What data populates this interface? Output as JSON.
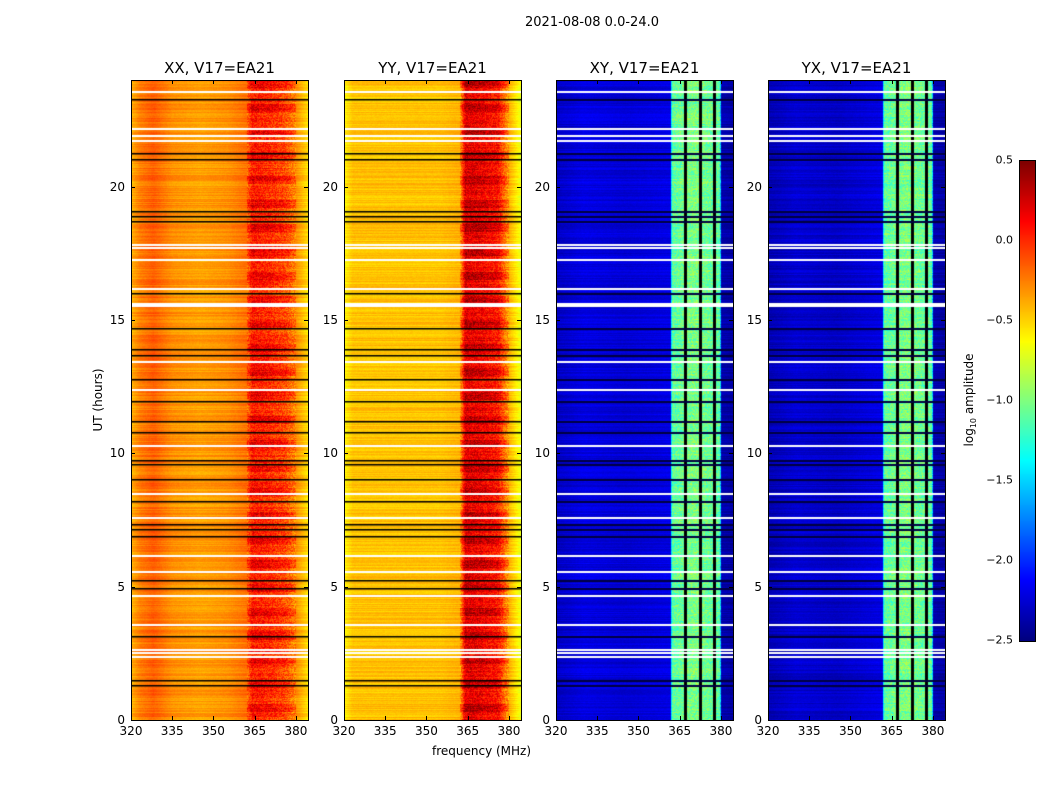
{
  "suptitle": "2021-08-08 0.0-24.0",
  "chart_data": {
    "type": "heatmap",
    "title": "2021-08-08 0.0-24.0",
    "xlabel": "frequency (MHz)",
    "ylabel": "UT (hours)",
    "xlim": [
      320,
      384.4
    ],
    "ylim": [
      0,
      24
    ],
    "xticks": [
      320,
      335,
      350,
      365,
      380
    ],
    "yticks": [
      0,
      5,
      10,
      15,
      20
    ],
    "panels": [
      {
        "title": "XX, V17=EA21",
        "profile_freq": [
          320,
          323,
          328,
          335,
          345,
          355,
          362,
          364,
          370,
          376,
          380,
          384.4
        ],
        "profile_log_amp": [
          -0.4,
          -0.25,
          -0.15,
          -0.3,
          -0.35,
          -0.3,
          -0.2,
          0.05,
          0.0,
          -0.1,
          -0.3,
          -0.55
        ],
        "vertical_gaps": []
      },
      {
        "title": "YY, V17=EA21",
        "profile_freq": [
          320,
          323,
          330,
          345,
          355,
          362,
          364,
          370,
          376,
          380,
          384.4
        ],
        "profile_log_amp": [
          -0.6,
          -0.45,
          -0.45,
          -0.45,
          -0.45,
          -0.4,
          0.2,
          0.15,
          0.05,
          -0.4,
          -0.7
        ],
        "vertical_gaps": []
      },
      {
        "title": "XY, V17=EA21",
        "profile_freq": [
          320,
          330,
          345,
          361.5,
          362,
          370,
          379.5,
          380,
          384.4
        ],
        "profile_log_amp": [
          -2.3,
          -2.2,
          -2.25,
          -2.2,
          -1.1,
          -1.0,
          -1.1,
          -2.35,
          -2.4
        ],
        "vertical_gaps": [
          367,
          372.5,
          377.5
        ]
      },
      {
        "title": "YX, V17=EA21",
        "profile_freq": [
          320,
          330,
          345,
          361.5,
          362,
          370,
          379.5,
          380,
          384.4
        ],
        "profile_log_amp": [
          -2.35,
          -2.25,
          -2.3,
          -2.2,
          -1.1,
          -1.0,
          -1.1,
          -2.35,
          -2.4
        ],
        "vertical_gaps": [
          367,
          372.5,
          377.5
        ]
      }
    ],
    "flagged_times_white": [
      23.6,
      22.2,
      21.95,
      21.75,
      17.85,
      17.75,
      17.3,
      16.2,
      15.65,
      15.55,
      13.45,
      12.4,
      10.3,
      8.5,
      7.6,
      6.2,
      5.6,
      4.7,
      3.6,
      2.65,
      2.55,
      2.4
    ],
    "low_amplitude_times_black": [
      23.3,
      21.25,
      21.05,
      19.1,
      18.9,
      18.7,
      16.0,
      14.7,
      13.9,
      13.7,
      12.8,
      11.95,
      11.2,
      10.8,
      9.75,
      9.6,
      9.05,
      8.2,
      7.35,
      7.15,
      6.9,
      5.25,
      4.95,
      3.15,
      1.5,
      1.3
    ],
    "colorbar": {
      "label": "log10 amplitude",
      "label_main": "log",
      "label_sub": "10",
      "label_rest": " amplitude",
      "vmin": -2.5,
      "vmax": 0.5,
      "ticks": [
        "0.5",
        "0.0",
        "−0.5",
        "−1.0",
        "−1.5",
        "−2.0",
        "−2.5"
      ],
      "colormap": "jet"
    }
  }
}
